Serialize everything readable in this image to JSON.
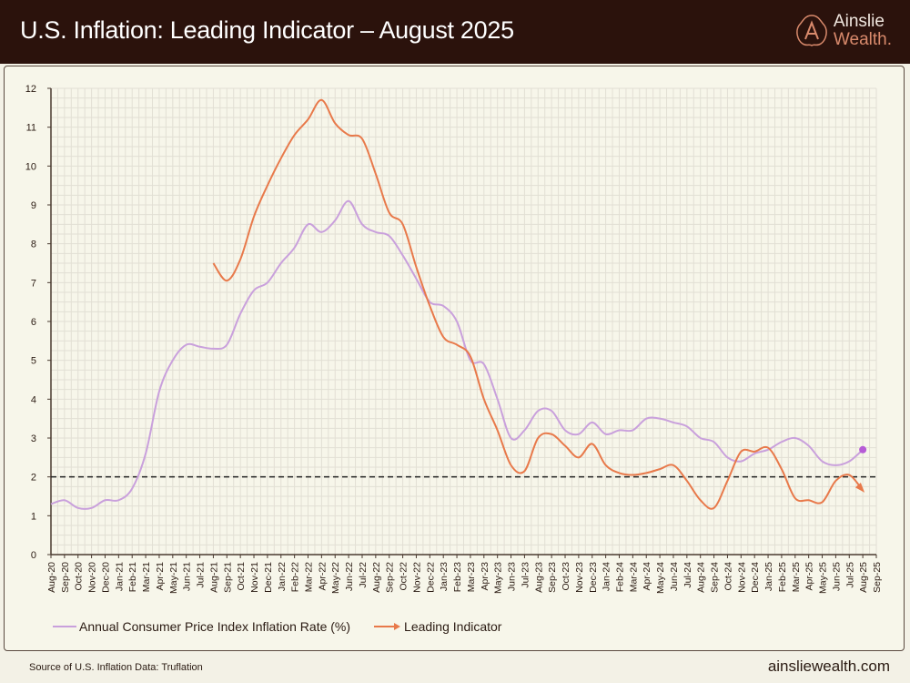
{
  "header": {
    "title": "U.S. Inflation: Leading Indicator – August 2025"
  },
  "logo": {
    "line1": "Ainslie",
    "line2": "Wealth."
  },
  "footer": {
    "source": "Source of U.S. Inflation Data: Truflation",
    "url": "ainsliewealth.com"
  },
  "colors": {
    "cpi": "#c9a0dc",
    "cpi_dot": "#b65bd6",
    "leading": "#e8794a",
    "header_bg": "#2b120c",
    "plot_bg": "#f7f6ea",
    "reference": "#222222"
  },
  "chart_data": {
    "type": "line",
    "title": "U.S. Inflation: Leading Indicator – August 2025",
    "xlabel": "",
    "ylabel": "",
    "ylim": [
      0,
      12
    ],
    "yticks": [
      "0",
      "1",
      "2",
      "3",
      "4",
      "5",
      "6",
      "7",
      "8",
      "9",
      "10",
      "11",
      "12"
    ],
    "grid": true,
    "legend": "bottom-left",
    "reference_line": {
      "y": 2,
      "style": "dashed"
    },
    "categories": [
      "Aug-20",
      "Sep-20",
      "Oct-20",
      "Nov-20",
      "Dec-20",
      "Jan-21",
      "Feb-21",
      "Mar-21",
      "Apr-21",
      "May-21",
      "Jun-21",
      "Jul-21",
      "Aug-21",
      "Sep-21",
      "Oct-21",
      "Nov-21",
      "Dec-21",
      "Jan-22",
      "Feb-22",
      "Mar-22",
      "Apr-22",
      "May-22",
      "Jun-22",
      "Jul-22",
      "Aug-22",
      "Sep-22",
      "Oct-22",
      "Nov-22",
      "Dec-22",
      "Jan-23",
      "Feb-23",
      "Mar-23",
      "Apr-23",
      "May-23",
      "Jun-23",
      "Jul-23",
      "Aug-23",
      "Sep-23",
      "Oct-23",
      "Nov-23",
      "Dec-23",
      "Jan-24",
      "Feb-24",
      "Mar-24",
      "Apr-24",
      "May-24",
      "Jun-24",
      "Jul-24",
      "Aug-24",
      "Sep-24",
      "Oct-24",
      "Nov-24",
      "Dec-24",
      "Jan-25",
      "Feb-25",
      "Mar-25",
      "Apr-25",
      "May-25",
      "Jun-25",
      "Jul-25",
      "Aug-25",
      "Sep-25"
    ],
    "series": [
      {
        "name": "Annual Consumer Price Index Inflation Rate (%)",
        "marker_end": "dot",
        "values": [
          1.3,
          1.4,
          1.2,
          1.2,
          1.4,
          1.4,
          1.7,
          2.6,
          4.2,
          5.0,
          5.4,
          5.35,
          5.3,
          5.4,
          6.2,
          6.8,
          7.0,
          7.5,
          7.9,
          8.5,
          8.3,
          8.6,
          9.1,
          8.5,
          8.3,
          8.2,
          7.7,
          7.1,
          6.5,
          6.4,
          6.0,
          5.0,
          4.9,
          4.0,
          3.0,
          3.2,
          3.7,
          3.7,
          3.2,
          3.1,
          3.4,
          3.1,
          3.2,
          3.2,
          3.5,
          3.5,
          3.4,
          3.3,
          3.0,
          2.9,
          2.5,
          2.4,
          2.6,
          2.7,
          2.9,
          3.0,
          2.8,
          2.4,
          2.3,
          2.4,
          2.7,
          null
        ]
      },
      {
        "name": "Leading Indicator",
        "marker_end": "arrow",
        "values": [
          null,
          null,
          null,
          null,
          null,
          null,
          null,
          null,
          null,
          null,
          null,
          null,
          7.5,
          7.05,
          7.6,
          8.7,
          9.5,
          10.2,
          10.8,
          11.2,
          11.7,
          11.1,
          10.8,
          10.7,
          9.8,
          8.8,
          8.5,
          7.4,
          6.4,
          5.6,
          5.4,
          5.1,
          4.0,
          3.2,
          2.3,
          2.15,
          3.0,
          3.1,
          2.8,
          2.5,
          2.85,
          2.3,
          2.1,
          2.05,
          2.1,
          2.2,
          2.3,
          1.9,
          1.4,
          1.2,
          1.9,
          2.65,
          2.65,
          2.75,
          2.2,
          1.45,
          1.4,
          1.35,
          1.9,
          2.05,
          1.65,
          null
        ]
      }
    ]
  }
}
